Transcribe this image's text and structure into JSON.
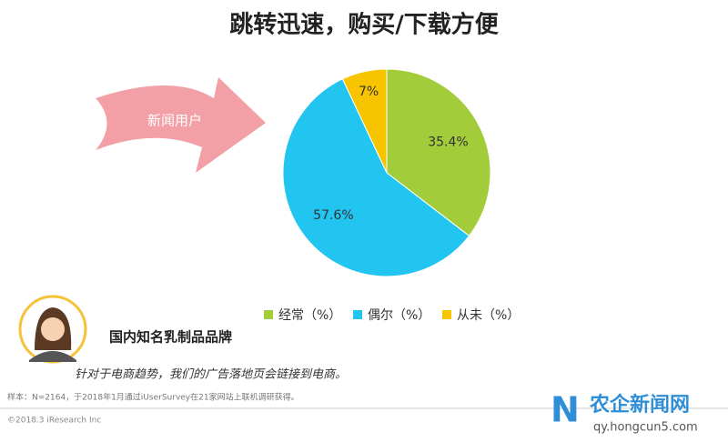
{
  "chart_data": {
    "type": "pie",
    "title": "跳转迅速，购买/下载方便",
    "categories": [
      "经常（%）",
      "偶尔（%）",
      "从未（%）"
    ],
    "values": [
      35.4,
      57.6,
      7
    ],
    "value_labels": [
      "35.4%",
      "57.6%",
      "7%"
    ],
    "colors": [
      "#a3cc3a",
      "#22c4f0",
      "#f8c400"
    ],
    "annotations": {
      "arrow": "新闻用户",
      "brand": "国内知名乳制品品牌",
      "quote": "针对于电商趋势，我们的广告落地页会链接到电商。",
      "source": "样本：N=2164，于2018年1月通过iUserSurvey在21家网站上联机调研获得。",
      "copyright": "©2018.3 iResearch Inc",
      "watermark": "农企新闻网",
      "watermark_url": "qy.hongcun5.com"
    }
  }
}
